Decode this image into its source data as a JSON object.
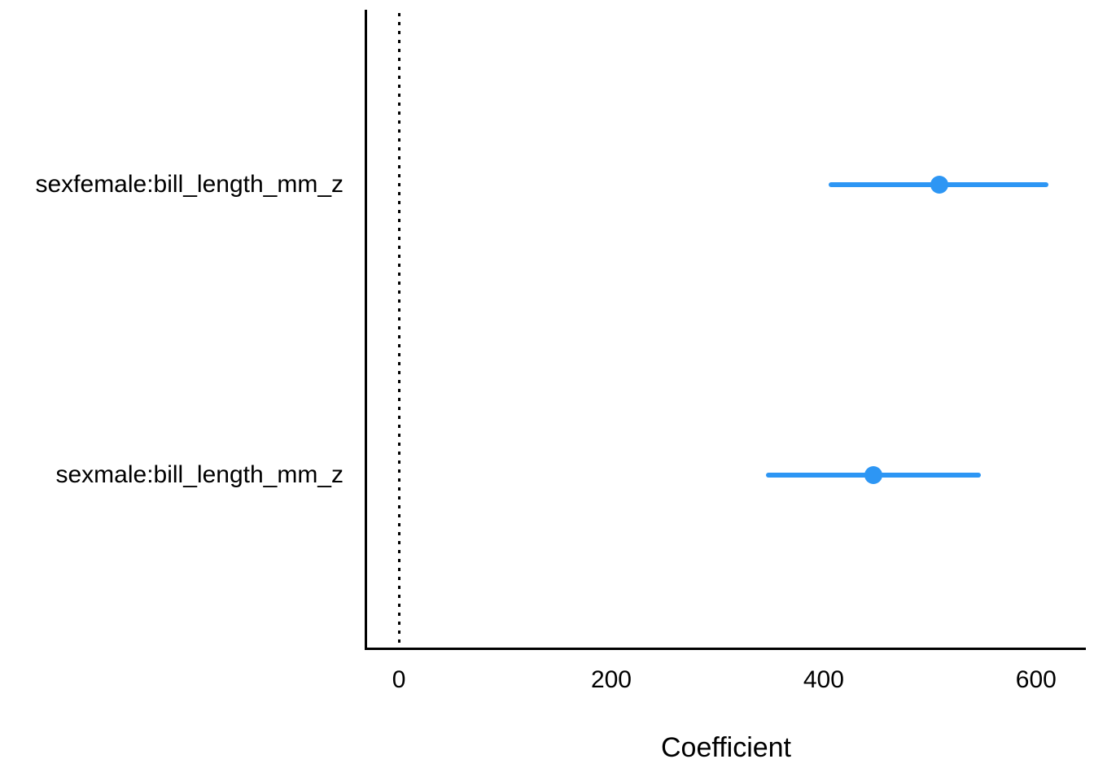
{
  "chart_data": {
    "type": "scatter",
    "subtype": "coefficient-dot-whisker",
    "title": "",
    "xlabel": "Coefficient",
    "ylabel": "",
    "x_ticks": [
      "0",
      "200",
      "400",
      "600"
    ],
    "x_tick_values": [
      0,
      200,
      400,
      600
    ],
    "xlim": [
      -30.7,
      646.9
    ],
    "grid": false,
    "legend": "none",
    "reference_line": {
      "x": 0,
      "style": "dotted",
      "color": "#000000"
    },
    "rows": [
      {
        "label": "sexfemale:bill_length_mm_z",
        "estimate": 509,
        "ci_low": 405,
        "ci_high": 612,
        "y_frac": 0.2727
      },
      {
        "label": "sexmale:bill_length_mm_z",
        "estimate": 447,
        "ci_low": 346,
        "ci_high": 548,
        "y_frac": 0.7273
      }
    ],
    "colors": {
      "point": "#2D96F4",
      "interval": "#2D96F4",
      "axis": "#000000",
      "text": "#000000",
      "background": "#FFFFFF"
    }
  }
}
